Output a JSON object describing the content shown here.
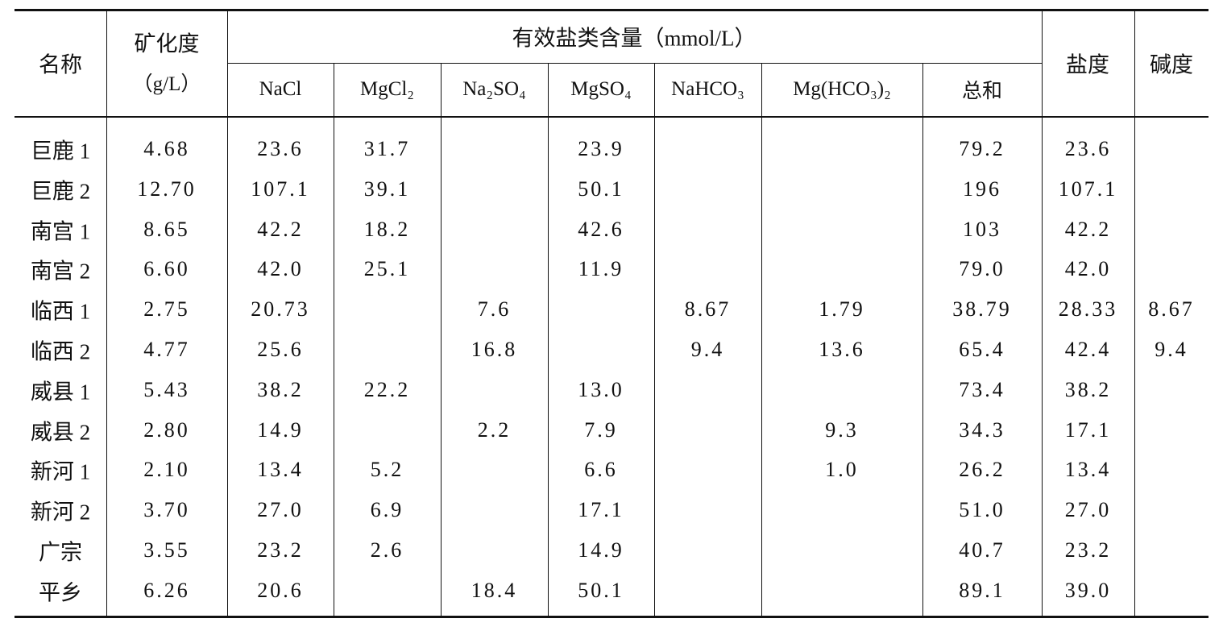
{
  "table": {
    "headers": {
      "name": "名称",
      "mineralization": "矿化度",
      "mineralization_unit": "（g/L）",
      "group": "有效盐类含量（mmol/L）",
      "salts": [
        "NaCl",
        "MgCl₂",
        "Na₂SO₄",
        "MgSO₄",
        "NaHCO₃",
        "Mg(HCO₃)₂",
        "总和"
      ],
      "salinity": "盐度",
      "alkalinity": "碱度"
    },
    "rows": [
      [
        "巨鹿 1",
        "4.68",
        "23.6",
        "31.7",
        null,
        "23.9",
        null,
        null,
        "79.2",
        "23.6",
        null
      ],
      [
        "巨鹿 2",
        "12.70",
        "107.1",
        "39.1",
        null,
        "50.1",
        null,
        null,
        "196",
        "107.1",
        null
      ],
      [
        "南宫 1",
        "8.65",
        "42.2",
        "18.2",
        null,
        "42.6",
        null,
        null,
        "103",
        "42.2",
        null
      ],
      [
        "南宫 2",
        "6.60",
        "42.0",
        "25.1",
        null,
        "11.9",
        null,
        null,
        "79.0",
        "42.0",
        null
      ],
      [
        "临西 1",
        "2.75",
        "20.73",
        null,
        "7.6",
        null,
        "8.67",
        "1.79",
        "38.79",
        "28.33",
        "8.67"
      ],
      [
        "临西 2",
        "4.77",
        "25.6",
        null,
        "16.8",
        null,
        "9.4",
        "13.6",
        "65.4",
        "42.4",
        "9.4"
      ],
      [
        "威县 1",
        "5.43",
        "38.2",
        "22.2",
        null,
        "13.0",
        null,
        null,
        "73.4",
        "38.2",
        null
      ],
      [
        "威县 2",
        "2.80",
        "14.9",
        null,
        "2.2",
        "7.9",
        null,
        "9.3",
        "34.3",
        "17.1",
        null
      ],
      [
        "新河 1",
        "2.10",
        "13.4",
        "5.2",
        null,
        "6.6",
        null,
        "1.0",
        "26.2",
        "13.4",
        null
      ],
      [
        "新河 2",
        "3.70",
        "27.0",
        "6.9",
        null,
        "17.1",
        null,
        null,
        "51.0",
        "27.0",
        null
      ],
      [
        "广宗",
        "3.55",
        "23.2",
        "2.6",
        null,
        "14.9",
        null,
        null,
        "40.7",
        "23.2",
        null
      ],
      [
        "平乡",
        "6.26",
        "20.6",
        null,
        "18.4",
        "50.1",
        null,
        null,
        "89.1",
        "39.0",
        null
      ]
    ]
  }
}
